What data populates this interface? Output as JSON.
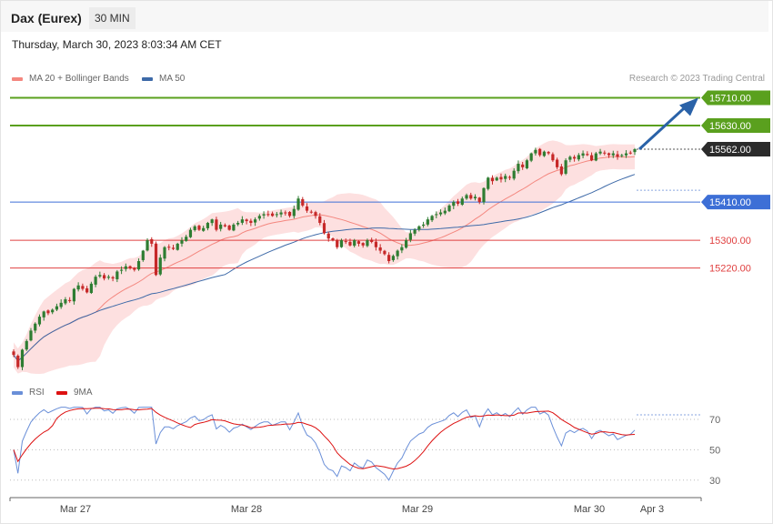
{
  "header": {
    "title": "Dax (Eurex)",
    "timeframe": "30 MIN"
  },
  "timestamp": "Thursday, March 30, 2023 8:03:34 AM CET",
  "legend": {
    "ma20": {
      "label": "MA 20 + Bollinger Bands",
      "color": "#f4877f"
    },
    "ma50": {
      "label": "MA 50",
      "color": "#3e6aa8"
    },
    "rsi": {
      "label": "RSI",
      "color": "#6a8fd8"
    },
    "ma9": {
      "label": "9MA",
      "color": "#dd1111"
    }
  },
  "credit": "Research © 2023 Trading Central",
  "colors": {
    "up": "#2e7d32",
    "down": "#c62828",
    "green_level": "#5aa01e",
    "blue_level": "#3d6fd6",
    "red_level": "#e04040",
    "arrow": "#2a62a8",
    "band": "#fde0e0"
  },
  "chart_data": [
    {
      "type": "candlestick",
      "x_labels": [
        "Mar 27",
        "Mar 28",
        "Mar 29",
        "Mar 30",
        "Apr 3"
      ],
      "close": [
        14970,
        14935,
        14985,
        15010,
        15040,
        15060,
        15080,
        15095,
        15090,
        15100,
        15110,
        15120,
        15130,
        15125,
        15160,
        15170,
        15160,
        15150,
        15175,
        15195,
        15200,
        15190,
        15195,
        15190,
        15210,
        15215,
        15225,
        15220,
        15215,
        15240,
        15270,
        15300,
        15290,
        15200,
        15250,
        15280,
        15280,
        15275,
        15290,
        15300,
        15310,
        15330,
        15340,
        15330,
        15335,
        15350,
        15360,
        15330,
        15345,
        15340,
        15330,
        15345,
        15350,
        15360,
        15355,
        15350,
        15360,
        15370,
        15375,
        15375,
        15370,
        15375,
        15380,
        15380,
        15370,
        15390,
        15420,
        15400,
        15385,
        15380,
        15370,
        15350,
        15320,
        15305,
        15300,
        15280,
        15300,
        15295,
        15285,
        15300,
        15290,
        15285,
        15300,
        15295,
        15280,
        15270,
        15260,
        15240,
        15255,
        15270,
        15280,
        15300,
        15320,
        15330,
        15340,
        15345,
        15360,
        15370,
        15375,
        15380,
        15385,
        15400,
        15410,
        15405,
        15420,
        15430,
        15420,
        15425,
        15410,
        15450,
        15480,
        15470,
        15480,
        15475,
        15485,
        15480,
        15500,
        15520,
        15510,
        15530,
        15550,
        15560,
        15545,
        15555,
        15550,
        15530,
        15510,
        15490,
        15530,
        15540,
        15535,
        15545,
        15550,
        15545,
        15530,
        15550,
        15555,
        15550,
        15545,
        15550,
        15540,
        15545,
        15550,
        15552,
        15562
      ],
      "levels": [
        {
          "value": 15710,
          "label": "15710.00",
          "kind": "resistance"
        },
        {
          "value": 15630,
          "label": "15630.00",
          "kind": "resistance"
        },
        {
          "value": 15562,
          "label": "15562.00",
          "kind": "last"
        },
        {
          "value": 15410,
          "label": "15410.00",
          "kind": "pivot"
        },
        {
          "value": 15300,
          "label": "15300.00",
          "kind": "support"
        },
        {
          "value": 15220,
          "label": "15220.00",
          "kind": "support"
        }
      ],
      "arrow": {
        "from": 15562,
        "to": 15710
      },
      "series": [
        {
          "name": "MA 20 + Bollinger Bands"
        },
        {
          "name": "MA 50"
        }
      ]
    },
    {
      "type": "line",
      "series": [
        {
          "name": "RSI"
        },
        {
          "name": "9MA"
        }
      ],
      "y_ticks": [
        "70",
        "50",
        "30"
      ],
      "ylim": [
        10,
        80
      ]
    }
  ]
}
